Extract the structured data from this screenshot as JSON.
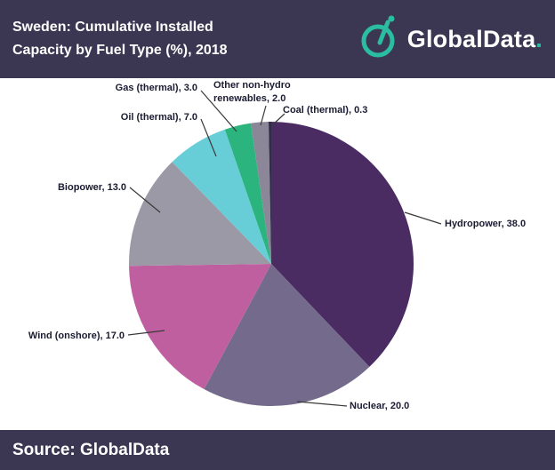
{
  "header": {
    "title_line1": "Sweden: Cumulative Installed",
    "title_line2": "Capacity by Fuel Type (%), 2018",
    "logo_text": "GlobalData",
    "logo_dot": "."
  },
  "footer": {
    "source": "Source: GlobalData"
  },
  "colors": {
    "bar_bg": "#3b3752",
    "logo_teal": "#2abda1",
    "label_text": "#1b1b32",
    "leader_line": "#3a3a3a"
  },
  "chart_data": {
    "type": "pie",
    "title": "Sweden: Cumulative Installed Capacity by Fuel Type (%), 2018",
    "unit": "percent",
    "start_angle_deg": -90,
    "direction": "clockwise",
    "legend_position": "outside-labels",
    "slices": [
      {
        "label": "Hydropower",
        "value": 38.0,
        "color": "#4a2c63",
        "display": "Hydropower, 38.0"
      },
      {
        "label": "Nuclear",
        "value": 20.0,
        "color": "#746a8c",
        "display": "Nuclear, 20.0"
      },
      {
        "label": "Wind (onshore)",
        "value": 17.0,
        "color": "#bf5fa0",
        "display": "Wind (onshore), 17.0"
      },
      {
        "label": "Biopower",
        "value": 13.0,
        "color": "#9c99a6",
        "display": "Biopower, 13.0"
      },
      {
        "label": "Oil (thermal)",
        "value": 7.0,
        "color": "#67ced8",
        "display": "Oil (thermal), 7.0"
      },
      {
        "label": "Gas (thermal)",
        "value": 3.0,
        "color": "#2bb47e",
        "display": "Gas (thermal), 3.0"
      },
      {
        "label": "Other non-hydro renewables",
        "value": 2.0,
        "color": "#8b8799",
        "display": "Other non-hydro renewables, 2.0"
      },
      {
        "label": "Coal (thermal)",
        "value": 0.3,
        "color": "#312e49",
        "display": "Coal (thermal), 0.3"
      }
    ]
  }
}
